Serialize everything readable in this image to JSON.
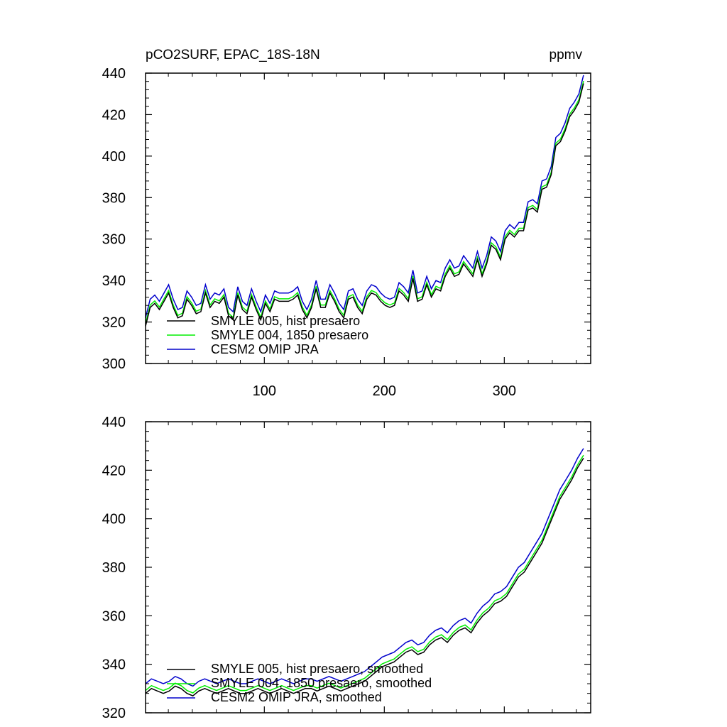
{
  "header": {
    "left_title": "pCO2SURF, EPAC_18S-18N",
    "right_units": "ppmv"
  },
  "colors": {
    "smyle005": "#000000",
    "smyle004": "#00ee00",
    "cesm2": "#0000cc",
    "axes": "#000000"
  },
  "chart_data": [
    {
      "type": "line",
      "title": "pCO2SURF, EPAC_18S-18N",
      "units": "ppmv",
      "xlabel": "",
      "ylabel": "",
      "xlim": [
        1,
        372
      ],
      "ylim": [
        300,
        440
      ],
      "x_ticks": [
        100,
        200,
        300
      ],
      "y_ticks": [
        300,
        320,
        340,
        360,
        380,
        400,
        420,
        440
      ],
      "grid": false,
      "legend_position": "bottom-left",
      "x_every": 6,
      "series": [
        {
          "name": "SMYLE 005, hist presaero",
          "key": "smyle005",
          "color": "#000000",
          "x_start": 1,
          "x_end": 366,
          "values": [
            318,
            327,
            329,
            326,
            330,
            334,
            327,
            322,
            323,
            331,
            328,
            324,
            325,
            334,
            327,
            330,
            329,
            332,
            323,
            321,
            333,
            326,
            324,
            332,
            326,
            321,
            329,
            325,
            331,
            330,
            330,
            330,
            331,
            333,
            326,
            322,
            327,
            336,
            327,
            327,
            334,
            330,
            325,
            322,
            331,
            332,
            327,
            324,
            331,
            334,
            333,
            330,
            328,
            327,
            328,
            335,
            333,
            330,
            341,
            330,
            331,
            338,
            332,
            336,
            335,
            342,
            346,
            342,
            343,
            348,
            345,
            342,
            350,
            342,
            348,
            357,
            355,
            350,
            360,
            363,
            361,
            364,
            364,
            374,
            375,
            373,
            384,
            385,
            391,
            405,
            407,
            412,
            419,
            422,
            426,
            435
          ]
        }
      ]
    },
    {
      "type": "line",
      "title": "",
      "xlabel": "",
      "ylabel": "",
      "xlim": [
        1,
        372
      ],
      "ylim": [
        320,
        440
      ],
      "x_ticks": [
        100,
        200,
        300
      ],
      "y_ticks": [
        320,
        340,
        360,
        380,
        400,
        420,
        440
      ],
      "grid": false,
      "legend_position": "bottom-left",
      "x_every": 6,
      "series": [
        {
          "name": "SMYLE 005, hist presaero, smoothed",
          "key": "smyle005",
          "color": "#000000",
          "x_start": 1,
          "x_end": 366,
          "values": [
            328,
            330,
            329,
            328,
            329,
            331,
            330,
            328,
            327,
            329,
            330,
            329,
            328,
            329,
            330,
            329,
            328,
            328,
            329,
            330,
            329,
            328,
            329,
            330,
            329,
            328,
            329,
            330,
            330,
            329,
            330,
            331,
            330,
            329,
            330,
            331,
            332,
            333,
            335,
            337,
            339,
            340,
            341,
            343,
            345,
            346,
            344,
            345,
            348,
            350,
            351,
            349,
            352,
            354,
            355,
            353,
            357,
            360,
            362,
            365,
            366,
            368,
            372,
            376,
            378,
            382,
            386,
            390,
            396,
            402,
            408,
            412,
            416,
            421,
            425
          ]
        }
      ]
    }
  ],
  "legend_top": [
    "SMYLE 005, hist presaero",
    "SMYLE 004, 1850 presaero",
    "CESM2 OMIP JRA"
  ],
  "legend_bottom": [
    "SMYLE 005, hist presaero, smoothed",
    "SMYLE 004, 1850 presaero, smoothed",
    "CESM2 OMIP JRA, smoothed"
  ]
}
